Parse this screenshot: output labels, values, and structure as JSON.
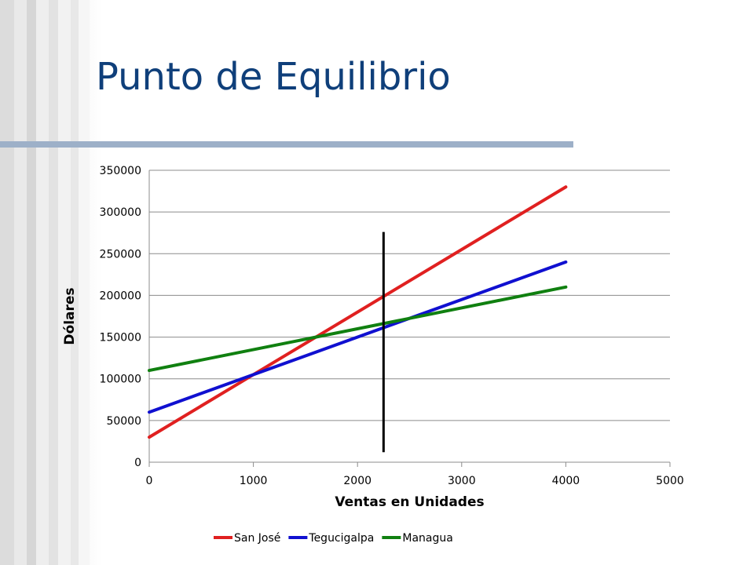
{
  "slide": {
    "title": "Punto de Equilibrio"
  },
  "chart_data": {
    "type": "line",
    "title": "",
    "xlabel": "Ventas en Unidades",
    "ylabel": "Dólares",
    "xlim": [
      0,
      5000
    ],
    "ylim": [
      0,
      350000
    ],
    "xticks": [
      0,
      1000,
      2000,
      3000,
      4000,
      5000
    ],
    "yticks": [
      0,
      50000,
      100000,
      150000,
      200000,
      250000,
      300000,
      350000
    ],
    "grid": "horizontal",
    "legend_position": "bottom",
    "series": [
      {
        "name": "San José",
        "color": "#e02020",
        "x": [
          0,
          4000
        ],
        "y": [
          30000,
          330000
        ]
      },
      {
        "name": "Tegucigalpa",
        "color": "#1010d0",
        "x": [
          0,
          4000
        ],
        "y": [
          60000,
          240000
        ]
      },
      {
        "name": "Managua",
        "color": "#108010",
        "x": [
          0,
          4000
        ],
        "y": [
          110000,
          210000
        ]
      }
    ],
    "annotations": [
      {
        "type": "vertical-line",
        "color": "#000000",
        "x": 2250,
        "y": [
          12000,
          276000
        ]
      }
    ]
  }
}
